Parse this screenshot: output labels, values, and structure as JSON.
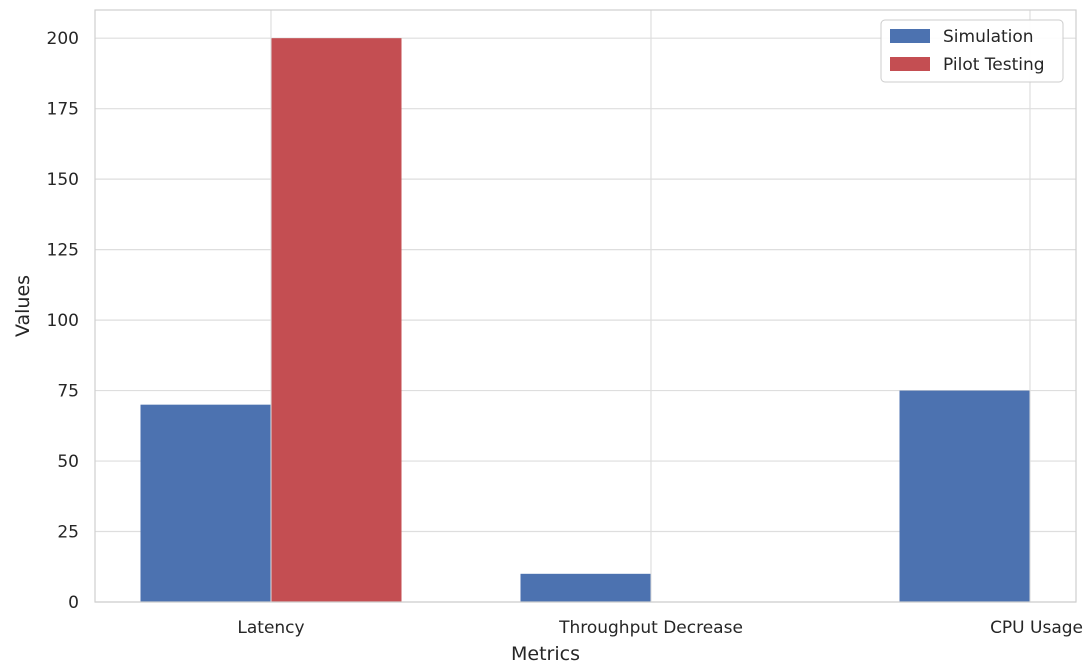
{
  "chart_data": {
    "type": "bar",
    "categories": [
      "Latency",
      "Throughput Decrease",
      "CPU Usage"
    ],
    "series": [
      {
        "name": "Simulation",
        "values": [
          70,
          10,
          75
        ],
        "color": "#4c72b0"
      },
      {
        "name": "Pilot Testing",
        "values": [
          200,
          null,
          null
        ],
        "color": "#c44e52"
      }
    ],
    "xlabel": "Metrics",
    "ylabel": "Values",
    "ylim": [
      0,
      210
    ],
    "yticks": [
      0,
      25,
      50,
      75,
      100,
      125,
      150,
      175,
      200
    ],
    "grid": true,
    "legend_position": "top-right"
  }
}
